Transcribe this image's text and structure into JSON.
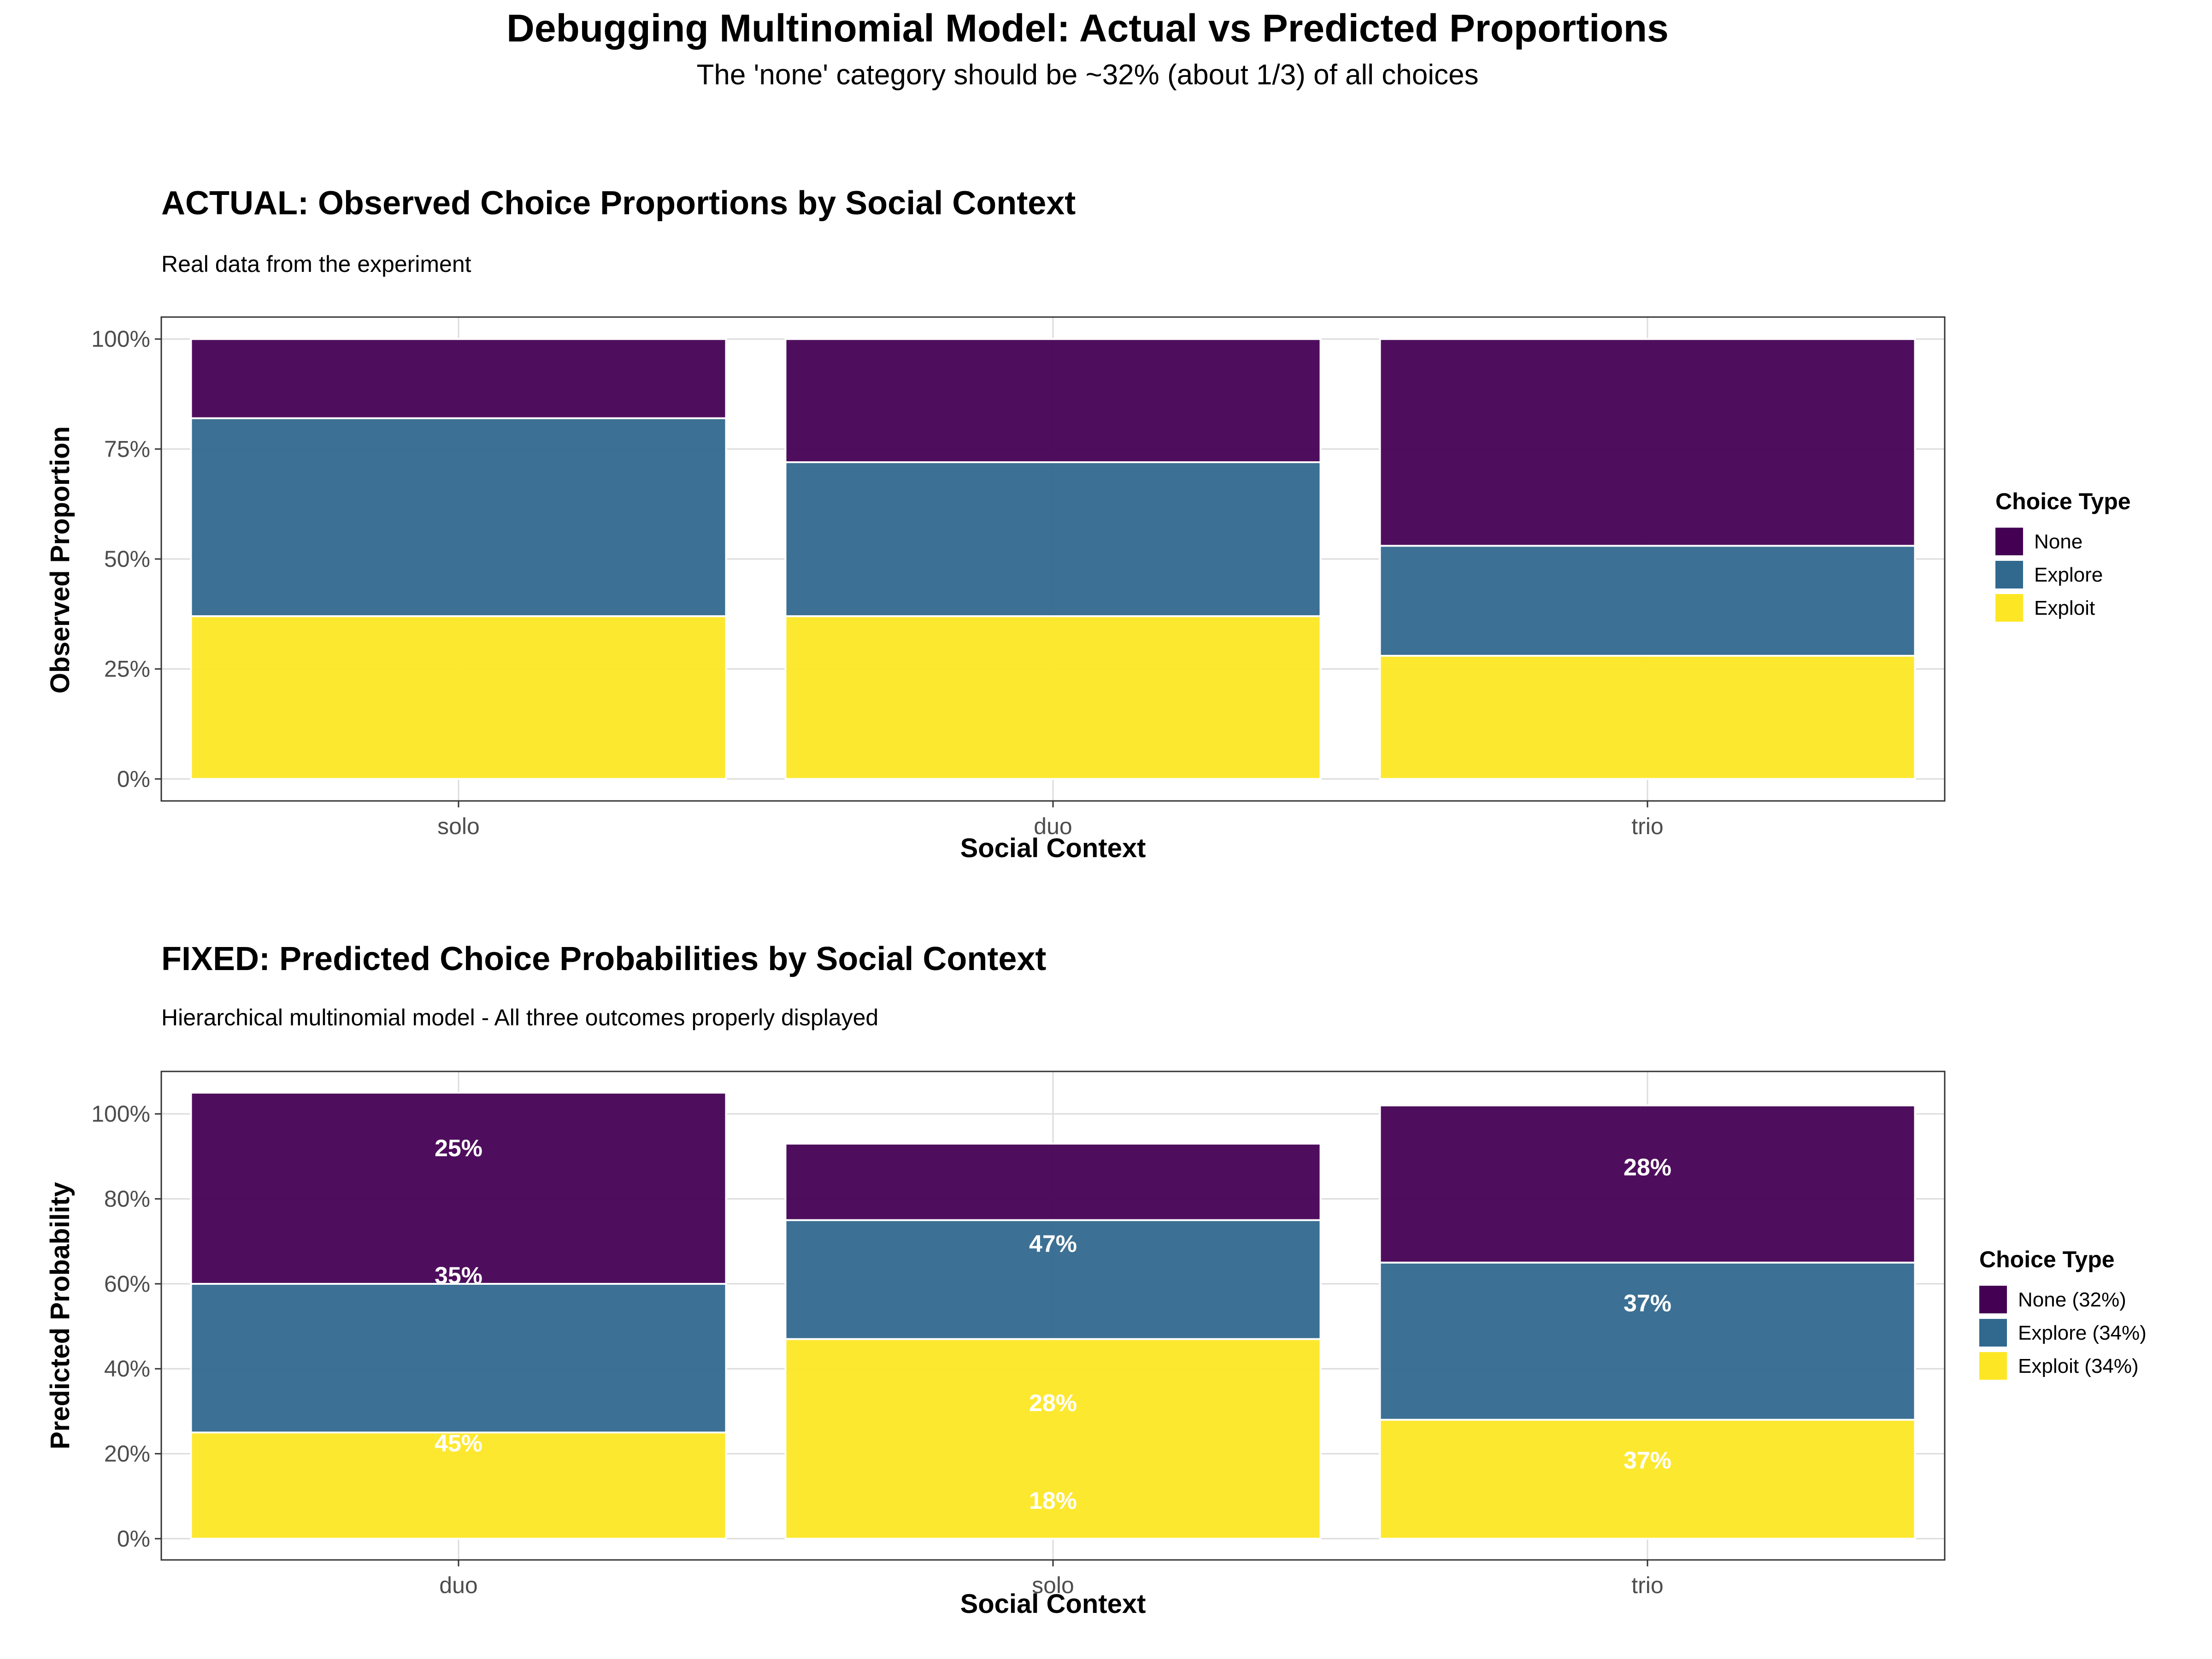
{
  "header": {
    "title": "Debugging Multinomial Model: Actual vs Predicted Proportions",
    "subtitle": "The 'none' category should be ~32% (about 1/3) of all choices"
  },
  "colors": {
    "none": "#440154",
    "explore": "#31688e",
    "exploit": "#fde725",
    "grid": "#dcdcdc",
    "frame": "#333333"
  },
  "chart_data": [
    {
      "type": "bar",
      "stacked": true,
      "title": "ACTUAL: Observed Choice Proportions by Social Context",
      "subtitle": "Real data from the experiment",
      "xlabel": "Social Context",
      "ylabel": "Observed Proportion",
      "categories": [
        "solo",
        "duo",
        "trio"
      ],
      "ylim": [
        -0.05,
        1.05
      ],
      "yticks": [
        0,
        0.25,
        0.5,
        0.75,
        1.0
      ],
      "ytick_labels": [
        "0%",
        "25%",
        "50%",
        "75%",
        "100%"
      ],
      "legend": {
        "title": "Choice Type",
        "position": "right",
        "entries": [
          "None",
          "Explore",
          "Exploit"
        ]
      },
      "series": [
        {
          "key": "exploit",
          "values": [
            0.37,
            0.37,
            0.28
          ]
        },
        {
          "key": "explore",
          "values": [
            0.45,
            0.35,
            0.25
          ]
        },
        {
          "key": "none",
          "values": [
            0.18,
            0.28,
            0.47
          ]
        }
      ],
      "labels": []
    },
    {
      "type": "bar",
      "stacked": true,
      "title": "FIXED: Predicted Choice Probabilities by Social Context",
      "subtitle": "Hierarchical multinomial model - All three outcomes properly displayed",
      "xlabel": "Social Context",
      "ylabel": "Predicted Probability",
      "categories": [
        "duo",
        "solo",
        "trio"
      ],
      "ylim": [
        -0.05,
        1.1
      ],
      "yticks": [
        0,
        0.2,
        0.4,
        0.6,
        0.8,
        1.0
      ],
      "ytick_labels": [
        "0%",
        "20%",
        "40%",
        "60%",
        "80%",
        "100%"
      ],
      "legend": {
        "title": "Choice Type",
        "position": "right",
        "entries": [
          "None (32%)",
          "Explore (34%)",
          "Exploit (34%)"
        ]
      },
      "series": [
        {
          "key": "exploit",
          "values": [
            0.25,
            0.47,
            0.28
          ]
        },
        {
          "key": "explore",
          "values": [
            0.35,
            0.28,
            0.37
          ]
        },
        {
          "key": "none",
          "values": [
            0.45,
            0.18,
            0.37
          ]
        }
      ],
      "labels": [
        {
          "category": "duo",
          "text": "25%",
          "y": 0.92
        },
        {
          "category": "duo",
          "text": "35%",
          "y": 0.62
        },
        {
          "category": "duo",
          "text": "45%",
          "y": 0.225
        },
        {
          "category": "solo",
          "text": "47%",
          "y": 0.695
        },
        {
          "category": "solo",
          "text": "28%",
          "y": 0.32
        },
        {
          "category": "solo",
          "text": "18%",
          "y": 0.09
        },
        {
          "category": "trio",
          "text": "28%",
          "y": 0.875
        },
        {
          "category": "trio",
          "text": "37%",
          "y": 0.555
        },
        {
          "category": "trio",
          "text": "37%",
          "y": 0.185
        }
      ]
    }
  ]
}
